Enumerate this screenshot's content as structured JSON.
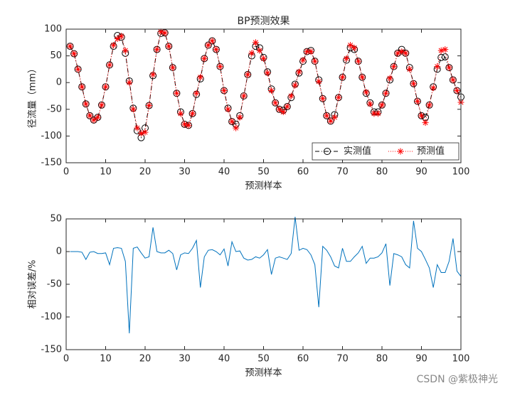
{
  "chart_data": [
    {
      "type": "line",
      "title": "BP预测效果",
      "xlabel": "预测样本",
      "ylabel": "径流量（mm）",
      "x": [
        1,
        2,
        3,
        4,
        5,
        6,
        7,
        8,
        9,
        10,
        11,
        12,
        13,
        14,
        15,
        16,
        17,
        18,
        19,
        20,
        21,
        22,
        23,
        24,
        25,
        26,
        27,
        28,
        29,
        30,
        31,
        32,
        33,
        34,
        35,
        36,
        37,
        38,
        39,
        40,
        41,
        42,
        43,
        44,
        45,
        46,
        47,
        48,
        49,
        50,
        51,
        52,
        53,
        54,
        55,
        56,
        57,
        58,
        59,
        60,
        61,
        62,
        63,
        64,
        65,
        66,
        67,
        68,
        69,
        70,
        71,
        72,
        73,
        74,
        75,
        76,
        77,
        78,
        79,
        80,
        81,
        82,
        83,
        84,
        85,
        86,
        87,
        88,
        89,
        90,
        91,
        92,
        93,
        94,
        95,
        96,
        97,
        98,
        99,
        100
      ],
      "series": [
        {
          "name": "实测值",
          "color": "#000000",
          "marker": "circle",
          "linestyle": "dashdot",
          "values": [
            68,
            54,
            25,
            -8,
            -40,
            -62,
            -70,
            -65,
            -42,
            -8,
            33,
            68,
            88,
            85,
            55,
            3,
            -48,
            -90,
            -103,
            -85,
            -43,
            13,
            62,
            92,
            93,
            68,
            28,
            -20,
            -55,
            -78,
            -80,
            -58,
            -22,
            7,
            45,
            70,
            78,
            62,
            30,
            -15,
            -48,
            -73,
            -78,
            -62,
            -25,
            15,
            50,
            68,
            65,
            47,
            20,
            -12,
            -38,
            -50,
            -52,
            -45,
            -28,
            -3,
            18,
            40,
            58,
            60,
            40,
            5,
            -30,
            -62,
            -72,
            -60,
            -28,
            10,
            42,
            65,
            62,
            40,
            10,
            -20,
            -38,
            -55,
            -55,
            -42,
            -20,
            5,
            30,
            55,
            62,
            55,
            28,
            -2,
            -35,
            -62,
            -65,
            -42,
            -8,
            25,
            47,
            48,
            28,
            5,
            -15,
            -27
          ]
        },
        {
          "name": "预测值",
          "color": "#ff0000",
          "marker": "star",
          "linestyle": "dotted",
          "values": [
            68,
            54,
            25,
            -8,
            -40,
            -62,
            -70,
            -65,
            -42,
            -8,
            33,
            70,
            82,
            87,
            60,
            0,
            -50,
            -85,
            -95,
            -93,
            -43,
            15,
            62,
            95,
            93,
            68,
            28,
            -20,
            -58,
            -78,
            -80,
            -58,
            -20,
            10,
            45,
            70,
            78,
            62,
            30,
            -15,
            -50,
            -73,
            -85,
            -65,
            -25,
            15,
            55,
            75,
            60,
            45,
            18,
            -15,
            -38,
            -50,
            -55,
            -45,
            -25,
            -5,
            20,
            42,
            58,
            58,
            40,
            2,
            -30,
            -62,
            -72,
            -65,
            -28,
            10,
            45,
            70,
            65,
            40,
            10,
            -18,
            -40,
            -58,
            -58,
            -42,
            -20,
            8,
            30,
            55,
            58,
            55,
            25,
            -2,
            -35,
            -62,
            -75,
            -42,
            -10,
            30,
            60,
            62,
            28,
            5,
            -15,
            -37
          ]
        }
      ],
      "xlim": [
        0,
        100
      ],
      "xticks": [
        0,
        10,
        20,
        30,
        40,
        50,
        60,
        70,
        80,
        90,
        100
      ],
      "ylim": [
        -150,
        100
      ],
      "yticks": [
        -150,
        -100,
        -50,
        0,
        50,
        100
      ],
      "legend": "lower right"
    },
    {
      "type": "line",
      "xlabel": "预测样本",
      "ylabel": "相对误差/%",
      "x": [
        1,
        2,
        3,
        4,
        5,
        6,
        7,
        8,
        9,
        10,
        11,
        12,
        13,
        14,
        15,
        16,
        17,
        18,
        19,
        20,
        21,
        22,
        23,
        24,
        25,
        26,
        27,
        28,
        29,
        30,
        31,
        32,
        33,
        34,
        35,
        36,
        37,
        38,
        39,
        40,
        41,
        42,
        43,
        44,
        45,
        46,
        47,
        48,
        49,
        50,
        51,
        52,
        53,
        54,
        55,
        56,
        57,
        58,
        59,
        60,
        61,
        62,
        63,
        64,
        65,
        66,
        67,
        68,
        69,
        70,
        71,
        72,
        73,
        74,
        75,
        76,
        77,
        78,
        79,
        80,
        81,
        82,
        83,
        84,
        85,
        86,
        87,
        88,
        89,
        90,
        91,
        92,
        93,
        94,
        95,
        96,
        97,
        98,
        99,
        100
      ],
      "series": [
        {
          "color": "#0072bd",
          "values": [
            0,
            0,
            0,
            -1,
            -12,
            -1,
            0,
            -3,
            -3,
            -2,
            -20,
            5,
            6,
            5,
            -15,
            -125,
            5,
            7,
            -2,
            -10,
            -8,
            37,
            0,
            -2,
            -2,
            2,
            -3,
            -28,
            -5,
            -2,
            -3,
            5,
            17,
            -55,
            -8,
            2,
            3,
            0,
            -5,
            4,
            -22,
            15,
            0,
            1,
            -10,
            -13,
            -12,
            -8,
            -10,
            -5,
            3,
            -35,
            -10,
            -8,
            -10,
            -12,
            -3,
            53,
            2,
            5,
            3,
            -5,
            -20,
            -85,
            8,
            2,
            -8,
            -22,
            -25,
            5,
            -15,
            -15,
            -8,
            -2,
            8,
            -18,
            -10,
            -10,
            -8,
            -2,
            12,
            -52,
            -3,
            -5,
            -8,
            -20,
            -25,
            47,
            5,
            0,
            -12,
            -25,
            -55,
            -20,
            -32,
            -32,
            -15,
            20,
            -30,
            -38
          ]
        }
      ],
      "xlim": [
        0,
        100
      ],
      "xticks": [
        0,
        10,
        20,
        30,
        40,
        50,
        60,
        70,
        80,
        90,
        100
      ],
      "ylim": [
        -150,
        50
      ],
      "yticks": [
        -150,
        -100,
        -50,
        0,
        50
      ]
    }
  ],
  "watermark": "CSDN @紫极神光"
}
